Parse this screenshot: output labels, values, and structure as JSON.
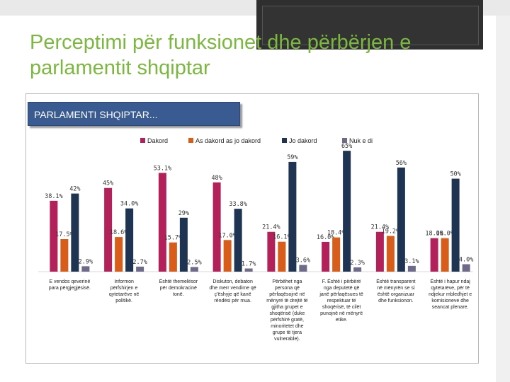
{
  "slide": {
    "title": "Perceptimi për funksionet dhe përbërjen e parlamentit shqiptar"
  },
  "chart_data": {
    "type": "bar",
    "title": "PARLAMENTI SHQIPTAR...",
    "legend_position": "top",
    "series": [
      {
        "name": "Dakord",
        "color": "#b3215b",
        "values": [
          38.1,
          45,
          53.1,
          48,
          21.4,
          16.0,
          21.4,
          18.0
        ],
        "labels": [
          "38.1%",
          "45%",
          "53.1%",
          "48%",
          "21.4%",
          "16.0%",
          "21.4%",
          "18.0%"
        ]
      },
      {
        "name": "As dakord as jo dakord",
        "color": "#d85c1a",
        "values": [
          17.5,
          18.6,
          15.7,
          17.0,
          16.1,
          18.4,
          19.2,
          18.0
        ],
        "labels": [
          "17.5%",
          "18.6%",
          "15.7%",
          "17.0%",
          "16.1%",
          "18.4%",
          "19.2%",
          "18.0%"
        ]
      },
      {
        "name": "Jo dakord",
        "color": "#1f3352",
        "values": [
          42,
          34.0,
          29,
          33.8,
          59,
          65,
          56,
          50
        ],
        "labels": [
          "42%",
          "34.0%",
          "29%",
          "33.8%",
          "59%",
          "65%",
          "56%",
          "50%"
        ]
      },
      {
        "name": "Nuk e di",
        "color": "#6d6a8a",
        "values": [
          2.9,
          2.7,
          2.5,
          1.7,
          3.6,
          2.3,
          3.1,
          4.0
        ],
        "labels": [
          "2.9%",
          "2.7%",
          "2.5%",
          "1.7%",
          "3.6%",
          "2.3%",
          "3.1%",
          "4.0%"
        ]
      }
    ],
    "categories": [
      "E vendos qeverinë para përgjegjësisë.",
      "Informon përfshirjen e qytetarëve në politikë.",
      "Është themelësor për demokracinë tonë.",
      "Diskuton, debaton dhe merr vendime që ç'ëshyje që kanë rëndësi për mua.",
      "Përbëhet nga persona që përfaqësojnë në mënyrë të drejtë të gjitha grupet e shoqërisë (duke përfshirë gratë, minoritetet dhe grupe të tjera vulnerable).",
      "F. Është i përbërë nga deputetë që janë përfaqësues të respektuar të shoqërisë, të cilët punojnë në mënyrë etike.",
      "Është transparent në mënyrën se si është organizuar dhe funksionon.",
      "Është i hapur ndaj qytetarëve, për të ndjekur mbledhjet e komisioneve dhe seancat plenare."
    ],
    "ylim": [
      0,
      70
    ],
    "grid": false
  }
}
